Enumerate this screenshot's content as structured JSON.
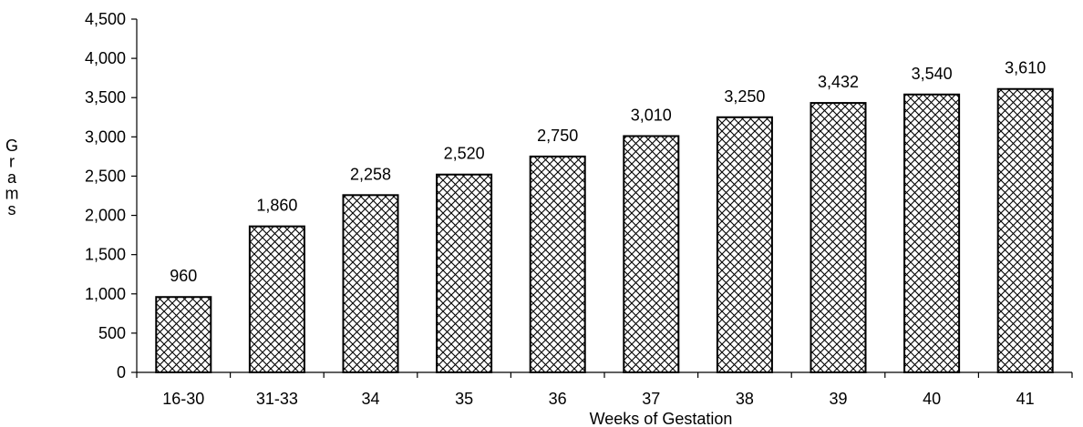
{
  "chart_data": {
    "type": "bar",
    "categories": [
      "16-30",
      "31-33",
      "34",
      "35",
      "36",
      "37",
      "38",
      "39",
      "40",
      "41"
    ],
    "values": [
      960,
      1860,
      2258,
      2520,
      2750,
      3010,
      3250,
      3432,
      3540,
      3610
    ],
    "data_labels": [
      "960",
      "1,860",
      "2,258",
      "2,520",
      "2,750",
      "3,010",
      "3,250",
      "3,432",
      "3,540",
      "3,610"
    ],
    "title": "",
    "xlabel": "Weeks of Gestation",
    "ylabel": "Grams",
    "ylim": [
      0,
      4500
    ],
    "yticks": [
      0,
      500,
      1000,
      1500,
      2000,
      2500,
      3000,
      3500,
      4000,
      4500
    ],
    "ytick_labels": [
      "0",
      "500",
      "1,000",
      "1,500",
      "2,000",
      "2,500",
      "3,000",
      "3,500",
      "4,000",
      "4,500"
    ],
    "grid": false,
    "bar_fill": "crosshatch",
    "colors": {
      "bar_stroke": "#000000",
      "hatch": "#000000",
      "background": "#ffffff"
    }
  }
}
